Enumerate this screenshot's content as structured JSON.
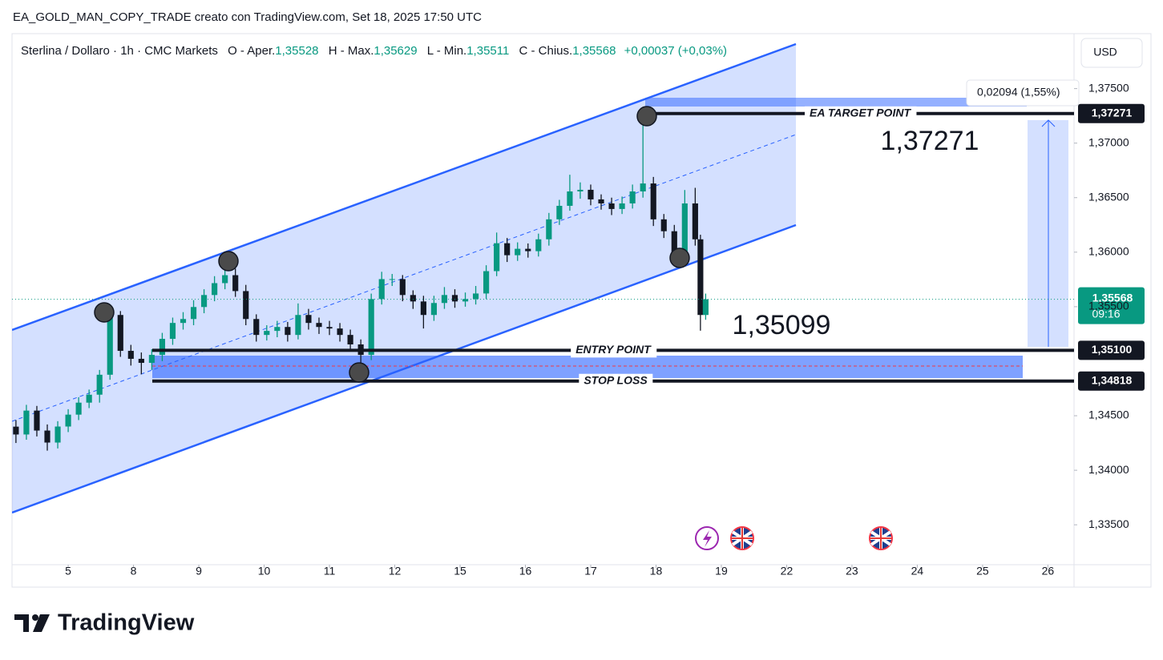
{
  "header": "EA_GOLD_MAN_COPY_TRADE creato con TradingView.com, Set 18, 2025 17:50 UTC",
  "footer_brand": "TradingView",
  "chart_data": {
    "type": "candlestick",
    "symbol": "Sterlina / Dollaro · 1h · CMC Markets",
    "ohlc_legend": [
      {
        "name": "O - Aper.",
        "value": 1.35528,
        "label": "1,35528"
      },
      {
        "name": "H - Max.",
        "value": 1.35629,
        "label": "1,35629"
      },
      {
        "name": "L - Min.",
        "value": 1.35511,
        "label": "1,35511"
      },
      {
        "name": "C - Chius.",
        "value": 1.35568,
        "label": "1,35568"
      }
    ],
    "change": "+0,00037 (+0,03%)",
    "currency": "USD",
    "up_color": "#089981",
    "down_color": "#131722",
    "x": [
      -0.8,
      -0.64,
      -0.48,
      -0.32,
      -0.16,
      0,
      0.16,
      0.32,
      0.48,
      0.64,
      0.8,
      0.96,
      1.12,
      1.28,
      1.44,
      1.6,
      1.76,
      1.92,
      2.08,
      2.24,
      2.4,
      2.56,
      2.72,
      2.88,
      3.04,
      3.2,
      3.36,
      3.52,
      3.68,
      3.84,
      4,
      4.16,
      4.32,
      4.48,
      4.64,
      4.8,
      4.96,
      5.12,
      5.28,
      5.44,
      5.6,
      5.76,
      5.92,
      6.08,
      6.24,
      6.4,
      6.56,
      6.72,
      6.88,
      7.04,
      7.2,
      7.36,
      7.52,
      7.68,
      7.84,
      8,
      8.16,
      8.32,
      8.48,
      8.64,
      8.8,
      8.96,
      9.12,
      9.28,
      9.44,
      9.6,
      9.68,
      9.76
    ],
    "open": [
      1.344,
      1.34328,
      1.34547,
      1.34364,
      1.34254,
      1.34401,
      1.3451,
      1.3462,
      1.34693,
      1.34876,
      1.35424,
      1.35095,
      1.35022,
      1.34985,
      1.35058,
      1.35205,
      1.35351,
      1.35387,
      1.35497,
      1.35607,
      1.35716,
      1.35789,
      1.35643,
      1.35387,
      1.35241,
      1.35278,
      1.35314,
      1.35241,
      1.35424,
      1.35351,
      1.35314,
      1.353,
      1.35241,
      1.35154,
      1.35058,
      1.3557,
      1.35753,
      1.35753,
      1.35607,
      1.35548,
      1.35424,
      1.35534,
      1.35607,
      1.35548,
      1.3557,
      1.35621,
      1.35826,
      1.36082,
      1.35972,
      1.36031,
      1.36009,
      1.36118,
      1.36301,
      1.36425,
      1.36557,
      1.36572,
      1.36484,
      1.36447,
      1.36396,
      1.36447,
      1.36557,
      1.3663,
      1.36301,
      1.36192,
      1.35987,
      1.36447,
      1.36118,
      1.35424
    ],
    "high": [
      1.3446,
      1.346,
      1.3459,
      1.3442,
      1.3445,
      1.3456,
      1.3467,
      1.3474,
      1.3492,
      1.3552,
      1.3546,
      1.3515,
      1.3508,
      1.3511,
      1.3526,
      1.354,
      1.3545,
      1.3556,
      1.3566,
      1.3578,
      1.3596,
      1.3585,
      1.357,
      1.3543,
      1.3533,
      1.3537,
      1.3536,
      1.3553,
      1.3548,
      1.354,
      1.3537,
      1.3535,
      1.3529,
      1.352,
      1.3562,
      1.3582,
      1.358,
      1.3579,
      1.3565,
      1.356,
      1.356,
      1.3568,
      1.3566,
      1.3563,
      1.3569,
      1.3588,
      1.3618,
      1.3613,
      1.3609,
      1.3608,
      1.3617,
      1.3636,
      1.3648,
      1.3671,
      1.3664,
      1.3662,
      1.3653,
      1.365,
      1.3651,
      1.3662,
      1.37271,
      1.3669,
      1.3635,
      1.3625,
      1.3657,
      1.3659,
      1.3616,
      1.3562
    ],
    "low": [
      1.3425,
      1.3428,
      1.3431,
      1.3418,
      1.342,
      1.3435,
      1.3446,
      1.3457,
      1.3462,
      1.3483,
      1.3504,
      1.3496,
      1.3488,
      1.3492,
      1.35,
      1.3515,
      1.3529,
      1.3533,
      1.3544,
      1.3555,
      1.3566,
      1.3559,
      1.3533,
      1.3518,
      1.3519,
      1.3522,
      1.3518,
      1.352,
      1.3529,
      1.3525,
      1.3524,
      1.3518,
      1.3509,
      1.3492,
      1.3501,
      1.3552,
      1.3569,
      1.3555,
      1.3548,
      1.353,
      1.3537,
      1.3548,
      1.3549,
      1.355,
      1.3552,
      1.3557,
      1.3578,
      1.3591,
      1.3592,
      1.3595,
      1.3596,
      1.3606,
      1.3625,
      1.3638,
      1.3649,
      1.3643,
      1.3639,
      1.3634,
      1.3635,
      1.364,
      1.365,
      1.3624,
      1.3613,
      1.359,
      1.3593,
      1.3606,
      1.3528,
      1.3538
    ],
    "close": [
      1.34328,
      1.34547,
      1.34364,
      1.34254,
      1.34401,
      1.3451,
      1.3462,
      1.34693,
      1.34876,
      1.35424,
      1.35095,
      1.35022,
      1.34985,
      1.35058,
      1.35205,
      1.35351,
      1.35387,
      1.35497,
      1.35607,
      1.35716,
      1.35789,
      1.35643,
      1.35387,
      1.35241,
      1.35278,
      1.35314,
      1.35241,
      1.35424,
      1.35351,
      1.35314,
      1.353,
      1.35241,
      1.35154,
      1.35058,
      1.3557,
      1.35753,
      1.35753,
      1.35607,
      1.35548,
      1.35424,
      1.35534,
      1.35607,
      1.35548,
      1.3557,
      1.35621,
      1.35826,
      1.36082,
      1.35972,
      1.36031,
      1.36009,
      1.36118,
      1.36301,
      1.36425,
      1.36557,
      1.36572,
      1.36484,
      1.36447,
      1.36396,
      1.36447,
      1.36557,
      1.3663,
      1.36301,
      1.36192,
      1.35987,
      1.36447,
      1.36118,
      1.35424,
      1.35568
    ],
    "xlim": [
      -0.86,
      15.4
    ],
    "xticks": [
      {
        "value": 0,
        "label": "5"
      },
      {
        "value": 1,
        "label": "8"
      },
      {
        "value": 2,
        "label": "9"
      },
      {
        "value": 3,
        "label": "10"
      },
      {
        "value": 4,
        "label": "11"
      },
      {
        "value": 5,
        "label": "12"
      },
      {
        "value": 6,
        "label": "15"
      },
      {
        "value": 7,
        "label": "16"
      },
      {
        "value": 8,
        "label": "17"
      },
      {
        "value": 9,
        "label": "18"
      },
      {
        "value": 10,
        "label": "19"
      },
      {
        "value": 11,
        "label": "22"
      },
      {
        "value": 12,
        "label": "23"
      },
      {
        "value": 13,
        "label": "24"
      },
      {
        "value": 14,
        "label": "25"
      },
      {
        "value": 15,
        "label": "26"
      }
    ],
    "ylim": [
      1.33134,
      1.38004
    ],
    "yticks": [
      {
        "value": 1.375,
        "label": "1,37500"
      },
      {
        "value": 1.37,
        "label": "1,37000"
      },
      {
        "value": 1.365,
        "label": "1,36500"
      },
      {
        "value": 1.36,
        "label": "1,36000"
      },
      {
        "value": 1.355,
        "label": "1,35500"
      },
      {
        "value": 1.345,
        "label": "1,34500"
      },
      {
        "value": 1.34,
        "label": "1,34000"
      },
      {
        "value": 1.335,
        "label": "1,33500"
      }
    ],
    "levels": [
      {
        "name": "EA TARGET POINT",
        "value": 1.37271,
        "label": "1,37271"
      },
      {
        "name": "ENTRY POINT",
        "value": 1.351,
        "label": "1,35100"
      },
      {
        "name": "STOP LOSS",
        "value": 1.34818,
        "label": "1,34818"
      }
    ],
    "last_price": {
      "value": 1.35568,
      "label": "1,35568",
      "countdown": "09:16"
    },
    "low_annotation": "1,35099",
    "measure_label": "0,02094 (1,55%)"
  }
}
